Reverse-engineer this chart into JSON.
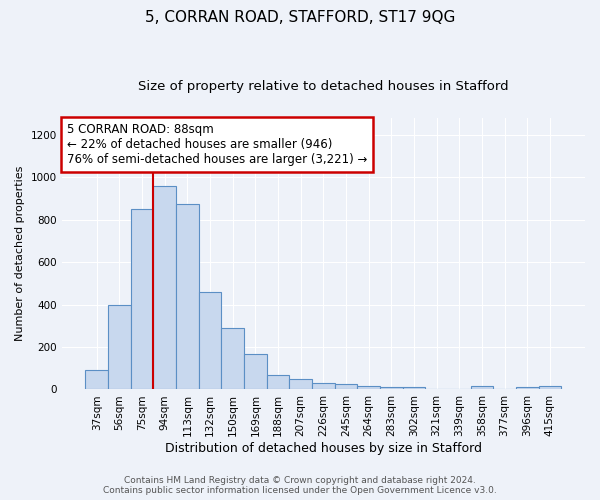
{
  "title": "5, CORRAN ROAD, STAFFORD, ST17 9QG",
  "subtitle": "Size of property relative to detached houses in Stafford",
  "xlabel": "Distribution of detached houses by size in Stafford",
  "ylabel": "Number of detached properties",
  "categories": [
    "37sqm",
    "56sqm",
    "75sqm",
    "94sqm",
    "113sqm",
    "132sqm",
    "150sqm",
    "169sqm",
    "188sqm",
    "207sqm",
    "226sqm",
    "245sqm",
    "264sqm",
    "283sqm",
    "302sqm",
    "321sqm",
    "339sqm",
    "358sqm",
    "377sqm",
    "396sqm",
    "415sqm"
  ],
  "values": [
    90,
    400,
    850,
    960,
    875,
    460,
    290,
    165,
    70,
    50,
    30,
    25,
    15,
    12,
    10,
    0,
    0,
    15,
    0,
    10,
    15
  ],
  "bar_color": "#c8d8ee",
  "bar_edge_color": "#5b8fc5",
  "vline_color": "#cc0000",
  "vline_x": 3.0,
  "annotation_text": "5 CORRAN ROAD: 88sqm\n← 22% of detached houses are smaller (946)\n76% of semi-detached houses are larger (3,221) →",
  "annotation_box_facecolor": "white",
  "annotation_box_edgecolor": "#cc0000",
  "ylim": [
    0,
    1280
  ],
  "yticks": [
    0,
    200,
    400,
    600,
    800,
    1000,
    1200
  ],
  "footer1": "Contains HM Land Registry data © Crown copyright and database right 2024.",
  "footer2": "Contains public sector information licensed under the Open Government Licence v3.0.",
  "background_color": "#eef2f9",
  "title_fontsize": 11,
  "subtitle_fontsize": 9.5,
  "xlabel_fontsize": 9,
  "ylabel_fontsize": 8,
  "tick_fontsize": 7.5,
  "footer_fontsize": 6.5,
  "annotation_fontsize": 8.5
}
